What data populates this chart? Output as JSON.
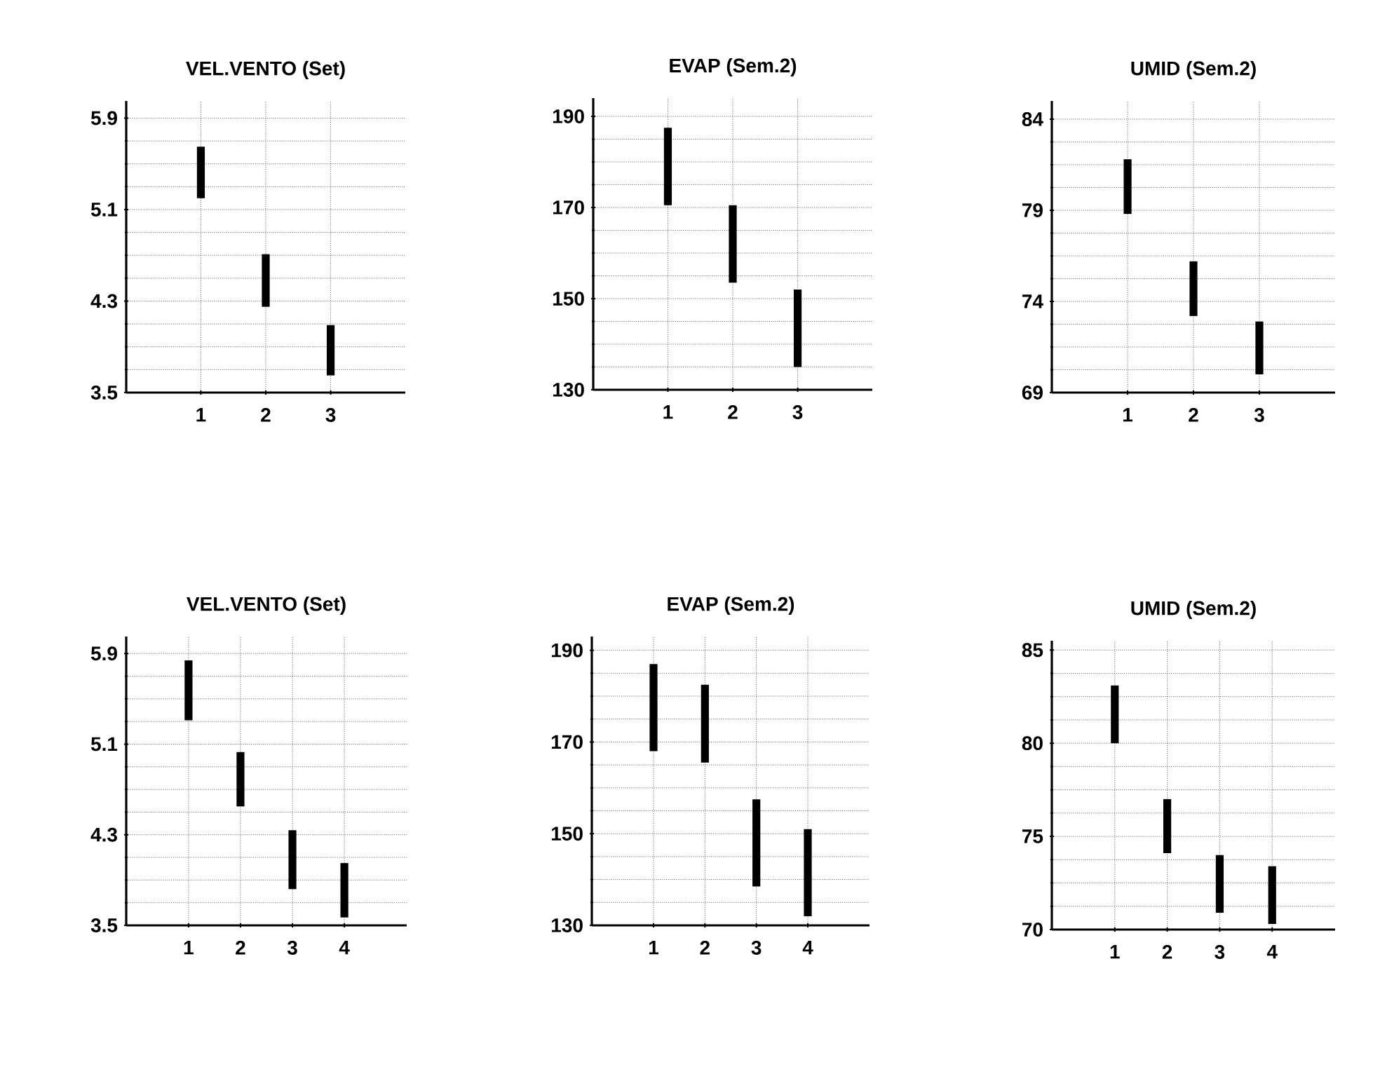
{
  "chart_data": [
    {
      "type": "bar",
      "title": "VEL.VENTO (Set)",
      "x": [
        1,
        2,
        3
      ],
      "base": [
        5.2,
        4.25,
        3.65
      ],
      "values": [
        0.45,
        0.46,
        0.44
      ],
      "color": "#000000",
      "xlim": [
        -0.15,
        4.15
      ],
      "xticks": [
        1,
        2,
        3
      ],
      "ylim": [
        3.5,
        6.05
      ],
      "yticks": [
        3.5,
        4.3,
        5.1,
        5.9
      ],
      "grid": true
    },
    {
      "type": "bar",
      "title": "EVAP (Sem.2)",
      "x": [
        1,
        2,
        3
      ],
      "base": [
        170.5,
        153.5,
        135
      ],
      "values": [
        17,
        17,
        17
      ],
      "color": "#000000",
      "xlim": [
        -0.15,
        4.15
      ],
      "xticks": [
        1,
        2,
        3
      ],
      "ylim": [
        130,
        194
      ],
      "yticks": [
        130,
        150,
        170,
        190
      ],
      "grid": true
    },
    {
      "type": "bar",
      "title": "UMID (Sem.2)",
      "x": [
        1,
        2,
        3
      ],
      "base": [
        78.8,
        73.2,
        70.0
      ],
      "values": [
        3.0,
        3.0,
        2.9
      ],
      "color": "#000000",
      "xlim": [
        -0.15,
        4.15
      ],
      "xticks": [
        1,
        2,
        3
      ],
      "ylim": [
        69,
        85
      ],
      "yticks": [
        69,
        74,
        79,
        84
      ],
      "grid": true
    },
    {
      "type": "bar",
      "title": "VEL.VENTO (Set)",
      "x": [
        1,
        2,
        3,
        4
      ],
      "base": [
        5.31,
        4.55,
        3.82,
        3.57
      ],
      "values": [
        0.53,
        0.48,
        0.52,
        0.48
      ],
      "color": "#000000",
      "xlim": [
        -0.2,
        5.2
      ],
      "xticks": [
        1,
        2,
        3,
        4
      ],
      "ylim": [
        3.5,
        6.05
      ],
      "yticks": [
        3.5,
        4.3,
        5.1,
        5.9
      ],
      "grid": true
    },
    {
      "type": "bar",
      "title": "EVAP (Sem.2)",
      "x": [
        1,
        2,
        3,
        4
      ],
      "base": [
        168,
        165.5,
        138.5,
        132
      ],
      "values": [
        19,
        17,
        19,
        19
      ],
      "color": "#000000",
      "xlim": [
        -0.2,
        5.2
      ],
      "xticks": [
        1,
        2,
        3,
        4
      ],
      "ylim": [
        130,
        193
      ],
      "yticks": [
        130,
        150,
        170,
        190
      ],
      "grid": true
    },
    {
      "type": "bar",
      "title": "UMID (Sem.2)",
      "x": [
        1,
        2,
        3,
        4
      ],
      "base": [
        80,
        74.1,
        70.9,
        70.3
      ],
      "values": [
        3.1,
        2.9,
        3.1,
        3.1
      ],
      "color": "#000000",
      "xlim": [
        -0.2,
        5.2
      ],
      "xticks": [
        1,
        2,
        3,
        4
      ],
      "ylim": [
        70,
        85.5
      ],
      "yticks": [
        70,
        75,
        80,
        85
      ],
      "grid": true
    }
  ]
}
